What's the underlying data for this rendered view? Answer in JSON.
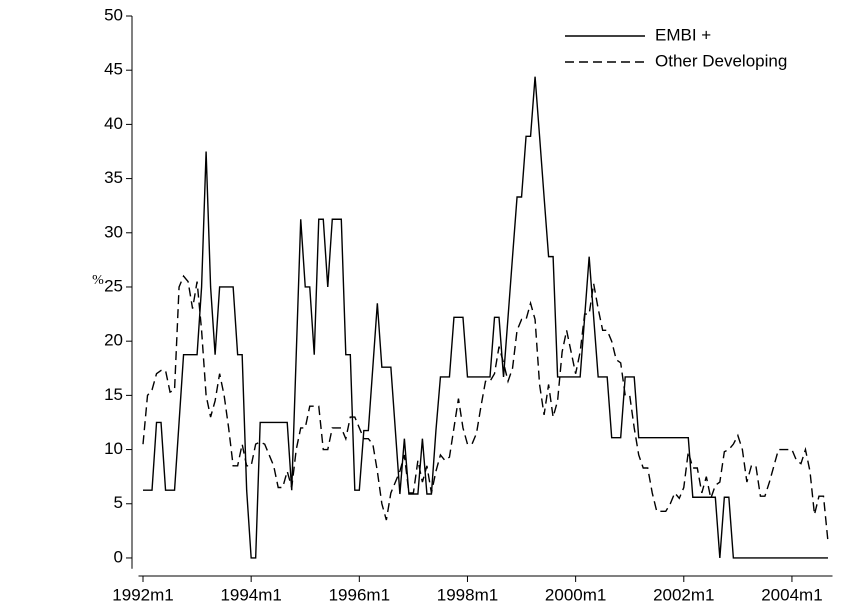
{
  "chart_data": {
    "type": "line",
    "y_label": "%",
    "x": [
      "1992m1",
      "1992m2",
      "1992m3",
      "1992m4",
      "1992m5",
      "1992m6",
      "1992m7",
      "1992m8",
      "1992m9",
      "1992m10",
      "1992m11",
      "1992m12",
      "1993m1",
      "1993m2",
      "1993m3",
      "1993m4",
      "1993m5",
      "1993m6",
      "1993m7",
      "1993m8",
      "1993m9",
      "1993m10",
      "1993m11",
      "1993m12",
      "1994m1",
      "1994m2",
      "1994m3",
      "1994m4",
      "1994m5",
      "1994m6",
      "1994m7",
      "1994m8",
      "1994m9",
      "1994m10",
      "1994m11",
      "1994m12",
      "1995m1",
      "1995m2",
      "1995m3",
      "1995m4",
      "1995m5",
      "1995m6",
      "1995m7",
      "1995m8",
      "1995m9",
      "1995m10",
      "1995m11",
      "1995m12",
      "1996m1",
      "1996m2",
      "1996m3",
      "1996m4",
      "1996m5",
      "1996m6",
      "1996m7",
      "1996m8",
      "1996m9",
      "1996m10",
      "1996m11",
      "1996m12",
      "1997m1",
      "1997m2",
      "1997m3",
      "1997m4",
      "1997m5",
      "1997m6",
      "1997m7",
      "1997m8",
      "1997m9",
      "1997m10",
      "1997m11",
      "1997m12",
      "1998m1",
      "1998m2",
      "1998m3",
      "1998m4",
      "1998m5",
      "1998m6",
      "1998m7",
      "1998m8",
      "1998m9",
      "1998m10",
      "1998m11",
      "1998m12",
      "1999m1",
      "1999m2",
      "1999m3",
      "1999m4",
      "1999m5",
      "1999m6",
      "1999m7",
      "1999m8",
      "1999m9",
      "1999m10",
      "1999m11",
      "1999m12",
      "2000m1",
      "2000m2",
      "2000m3",
      "2000m4",
      "2000m5",
      "2000m6",
      "2000m7",
      "2000m8",
      "2000m9",
      "2000m10",
      "2000m11",
      "2000m12",
      "2001m1",
      "2001m2",
      "2001m3",
      "2001m4",
      "2001m5",
      "2001m6",
      "2001m7",
      "2001m8",
      "2001m9",
      "2001m10",
      "2001m11",
      "2001m12",
      "2002m1",
      "2002m2",
      "2002m3",
      "2002m4",
      "2002m5",
      "2002m6",
      "2002m7",
      "2002m8",
      "2002m9",
      "2002m10",
      "2002m11",
      "2002m12",
      "2003m1",
      "2003m2",
      "2003m3",
      "2003m4",
      "2003m5",
      "2003m6",
      "2003m7",
      "2003m8",
      "2003m9",
      "2003m10",
      "2003m11",
      "2003m12",
      "2004m1",
      "2004m2",
      "2004m3",
      "2004m4",
      "2004m5",
      "2004m6",
      "2004m7",
      "2004m8",
      "2004m9"
    ],
    "series": [
      {
        "name": "EMBI +",
        "color": "#000000",
        "dash": "solid",
        "values": [
          6.25,
          6.25,
          6.25,
          12.5,
          12.5,
          6.25,
          6.25,
          6.25,
          12.5,
          18.75,
          18.75,
          18.75,
          18.75,
          25,
          37.5,
          25,
          18.75,
          25,
          25,
          25,
          25,
          18.75,
          18.75,
          6.25,
          0,
          0,
          12.5,
          12.5,
          12.5,
          12.5,
          12.5,
          12.5,
          12.5,
          6.25,
          18.75,
          31.25,
          25,
          25,
          18.75,
          31.25,
          31.25,
          25,
          31.25,
          31.25,
          31.25,
          18.75,
          18.75,
          6.25,
          6.25,
          11.75,
          11.75,
          17.6,
          23.5,
          17.6,
          17.6,
          17.6,
          11.75,
          5.9,
          11,
          5.9,
          5.9,
          5.9,
          11,
          5.9,
          5.9,
          11.75,
          16.7,
          16.7,
          16.7,
          22.2,
          22.2,
          22.2,
          16.7,
          16.7,
          16.7,
          16.7,
          16.7,
          16.7,
          22.2,
          22.2,
          16.7,
          22.2,
          27.8,
          33.3,
          33.3,
          38.9,
          38.9,
          44.4,
          38.9,
          33.3,
          27.8,
          27.8,
          16.7,
          16.7,
          16.7,
          16.7,
          16.7,
          16.7,
          22.2,
          27.8,
          22.2,
          16.7,
          16.7,
          16.7,
          11.1,
          11.1,
          11.1,
          16.7,
          16.7,
          16.7,
          11.1,
          11.1,
          11.1,
          11.1,
          11.1,
          11.1,
          11.1,
          11.1,
          11.1,
          11.1,
          11.1,
          11.1,
          5.6,
          5.6,
          5.6,
          5.6,
          5.6,
          5.6,
          0,
          5.6,
          5.6,
          0,
          0,
          0,
          0,
          0,
          0,
          0,
          0,
          0,
          0,
          0,
          0,
          0,
          0,
          0,
          0,
          0,
          0,
          0,
          0,
          0,
          0
        ]
      },
      {
        "name": "Other Developing",
        "color": "#000000",
        "dash": "dashed",
        "values": [
          10.5,
          15,
          15.5,
          17,
          17.3,
          17.3,
          15.3,
          15.5,
          25,
          26,
          25.5,
          23,
          25.5,
          21,
          15,
          13,
          14.5,
          17,
          15,
          12,
          8.5,
          8.5,
          10.5,
          8.5,
          8.5,
          10.5,
          10.7,
          10.5,
          9.5,
          8.5,
          6.5,
          6.5,
          8,
          6.5,
          10,
          12,
          12,
          14,
          14,
          14,
          10,
          10,
          12,
          12,
          12,
          11,
          13,
          13,
          12,
          11,
          11,
          10.5,
          8,
          5,
          3.5,
          6,
          7,
          8,
          9.5,
          6,
          6,
          9,
          7,
          8.5,
          6,
          8,
          9.5,
          9,
          9.3,
          12,
          14.7,
          12,
          10.5,
          10.5,
          11.5,
          14,
          16.3,
          16.3,
          17,
          19.5,
          18,
          16.3,
          17.5,
          21,
          22,
          22,
          23.5,
          22,
          16,
          13.2,
          16,
          13,
          14.5,
          19,
          21,
          19,
          17,
          19,
          22.5,
          22.5,
          25.3,
          23,
          21,
          21,
          20,
          18.3,
          18,
          15,
          15,
          12,
          9.5,
          8.3,
          8.3,
          6,
          4.3,
          4.3,
          4.3,
          5,
          6,
          5.5,
          6.5,
          9.8,
          8.3,
          8.3,
          6,
          7.5,
          5.5,
          6.7,
          7,
          9.8,
          10,
          10.5,
          11.3,
          10,
          7,
          8.5,
          8.5,
          5.7,
          5.7,
          7,
          8.5,
          10,
          10,
          10,
          10,
          9,
          8.7,
          10,
          8,
          4,
          5.7,
          5.7,
          1.5
        ]
      }
    ],
    "xlim": [
      "1991m12",
      "2004m10"
    ],
    "xticks": [
      "1992m1",
      "1994m1",
      "1996m1",
      "1998m1",
      "2000m1",
      "2002m1",
      "2004m1"
    ],
    "ylim": [
      -1,
      50
    ],
    "yticks": [
      0,
      5,
      10,
      15,
      20,
      25,
      30,
      35,
      40,
      45,
      50
    ],
    "legend": "top-right"
  }
}
